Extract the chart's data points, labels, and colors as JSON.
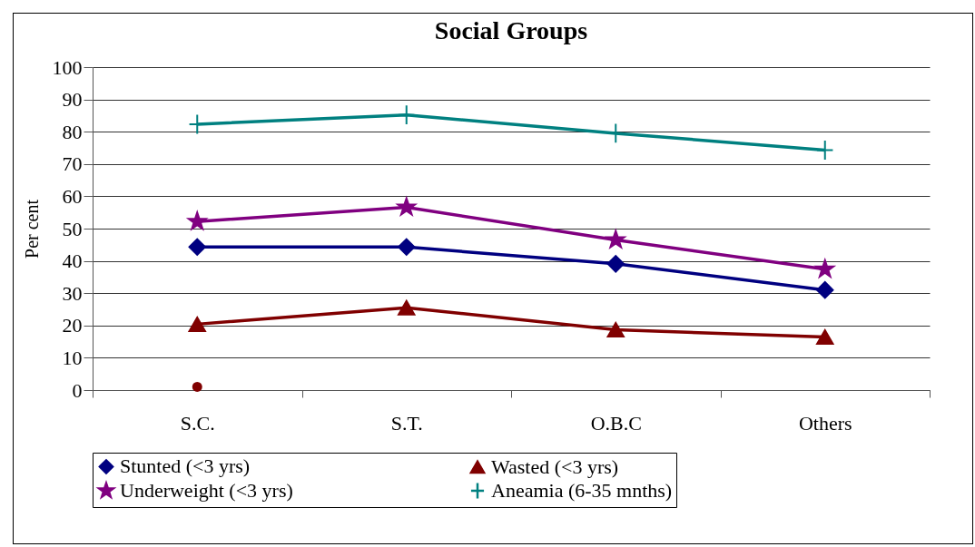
{
  "chart_data": {
    "type": "line",
    "title": "Social Groups",
    "ylabel": "Per cent",
    "categories": [
      "S.C.",
      "S.T.",
      "O.B.C",
      "Others"
    ],
    "series": [
      {
        "name": "Stunted (<3 yrs)",
        "color": "#000080",
        "marker": "diamond",
        "values": [
          44.3,
          44.3,
          39.1,
          31.0
        ]
      },
      {
        "name": "Wasted (<3 yrs)",
        "color": "#800000",
        "marker": "triangle",
        "values": [
          20.4,
          25.5,
          18.7,
          16.4
        ]
      },
      {
        "name": "Underweight (<3 yrs)",
        "color": "#800080",
        "marker": "star",
        "values": [
          52.2,
          56.6,
          46.5,
          37.4
        ]
      },
      {
        "name": "Aneamia (6-35 mnths)",
        "color": "#008080",
        "marker": "cross",
        "values": [
          82.3,
          85.2,
          79.5,
          74.3
        ]
      },
      {
        "type": "scatter",
        "color": "#800000",
        "marker": "circle",
        "values": [
          1,
          null,
          null,
          null
        ]
      }
    ],
    "ylim": [
      0,
      100
    ],
    "yticks": [
      0,
      10,
      20,
      30,
      40,
      50,
      60,
      70,
      80,
      90,
      100
    ],
    "grid": "y",
    "legend": "bottom"
  }
}
